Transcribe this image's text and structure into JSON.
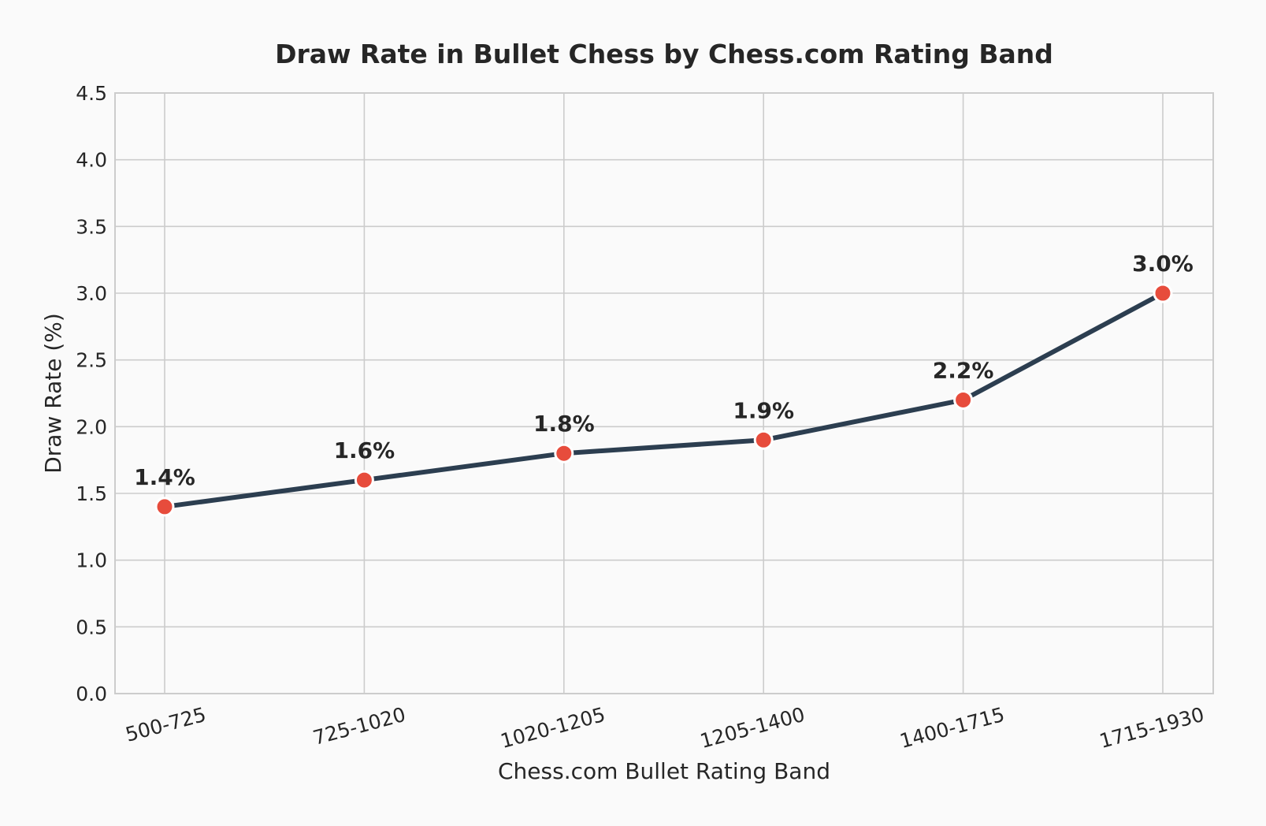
{
  "chart_data": {
    "type": "line",
    "title": "Draw Rate in Bullet Chess by Chess.com Rating Band",
    "xlabel": "Chess.com Bullet Rating Band",
    "ylabel": "Draw Rate (%)",
    "categories": [
      "500-725",
      "725-1020",
      "1020-1205",
      "1205-1400",
      "1400-1715",
      "1715-1930"
    ],
    "values": [
      1.4,
      1.6,
      1.8,
      1.9,
      2.2,
      3.0
    ],
    "data_labels": [
      "1.4%",
      "1.6%",
      "1.8%",
      "1.9%",
      "2.2%",
      "3.0%"
    ],
    "ylim": [
      0,
      4.5
    ],
    "yticks": [
      "0.0",
      "0.5",
      "1.0",
      "1.5",
      "2.0",
      "2.5",
      "3.0",
      "3.5",
      "4.0",
      "4.5"
    ],
    "grid": true,
    "colors": {
      "line": "#2c3e50",
      "marker": "#e74c3c",
      "marker_edge": "#ffffff"
    }
  }
}
